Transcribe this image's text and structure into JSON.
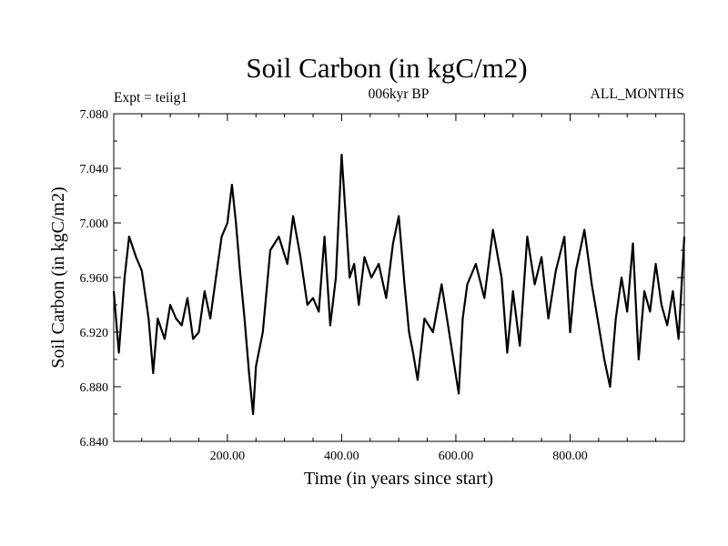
{
  "chart_data": {
    "type": "line",
    "title": "Soil Carbon (in kgC/m2)",
    "subtitle_left": "Expt = teiig1",
    "subtitle_center": "006kyr BP",
    "subtitle_right": "ALL_MONTHS",
    "xlabel": "Time (in years since start)",
    "ylabel": "Soil Carbon (in kgC/m2)",
    "xlim": [
      1,
      1000
    ],
    "ylim": [
      6.84,
      7.08
    ],
    "x_ticks": [
      200,
      400,
      600,
      800
    ],
    "x_tick_labels": [
      "200.00",
      "400.00",
      "600.00",
      "800.00"
    ],
    "y_ticks": [
      6.84,
      6.88,
      6.92,
      6.96,
      7.0,
      7.04,
      7.08
    ],
    "y_tick_labels": [
      "6.840",
      "6.880",
      "6.920",
      "6.960",
      "7.000",
      "7.040",
      "7.080"
    ],
    "grid": false,
    "series": [
      {
        "color": "#000000",
        "x": [
          1,
          10,
          20,
          28,
          40,
          50,
          62,
          70,
          78,
          90,
          100,
          110,
          120,
          130,
          140,
          150,
          160,
          170,
          180,
          190,
          200,
          208,
          215,
          222,
          230,
          238,
          245,
          250,
          262,
          275,
          290,
          305,
          315,
          328,
          340,
          350,
          360,
          370,
          380,
          390,
          400,
          408,
          414,
          422,
          430,
          440,
          452,
          465,
          478,
          490,
          500,
          510,
          518,
          525,
          533,
          545,
          560,
          575,
          590,
          605,
          612,
          620,
          635,
          650,
          665,
          680,
          690,
          700,
          712,
          725,
          738,
          750,
          762,
          775,
          790,
          800,
          810,
          825,
          838,
          850,
          860,
          870,
          880,
          890,
          900,
          910,
          920,
          930,
          940,
          950,
          960,
          970,
          980,
          990,
          1000
        ],
        "y": [
          6.95,
          6.905,
          6.96,
          6.99,
          6.975,
          6.965,
          6.93,
          6.89,
          6.93,
          6.915,
          6.94,
          6.93,
          6.925,
          6.945,
          6.915,
          6.92,
          6.95,
          6.93,
          6.96,
          6.99,
          7.0,
          7.028,
          7.0,
          6.965,
          6.93,
          6.89,
          6.86,
          6.895,
          6.92,
          6.98,
          6.99,
          6.97,
          7.005,
          6.975,
          6.94,
          6.945,
          6.935,
          6.99,
          6.925,
          6.96,
          7.05,
          7.0,
          6.96,
          6.97,
          6.94,
          6.975,
          6.96,
          6.97,
          6.945,
          6.985,
          7.005,
          6.955,
          6.92,
          6.905,
          6.885,
          6.93,
          6.92,
          6.955,
          6.915,
          6.875,
          6.93,
          6.955,
          6.97,
          6.945,
          6.995,
          6.96,
          6.905,
          6.95,
          6.91,
          6.99,
          6.955,
          6.975,
          6.93,
          6.965,
          6.99,
          6.92,
          6.965,
          6.995,
          6.955,
          6.925,
          6.9,
          6.88,
          6.93,
          6.96,
          6.935,
          6.985,
          6.9,
          6.95,
          6.935,
          6.97,
          6.94,
          6.925,
          6.95,
          6.915,
          6.99
        ]
      }
    ]
  }
}
